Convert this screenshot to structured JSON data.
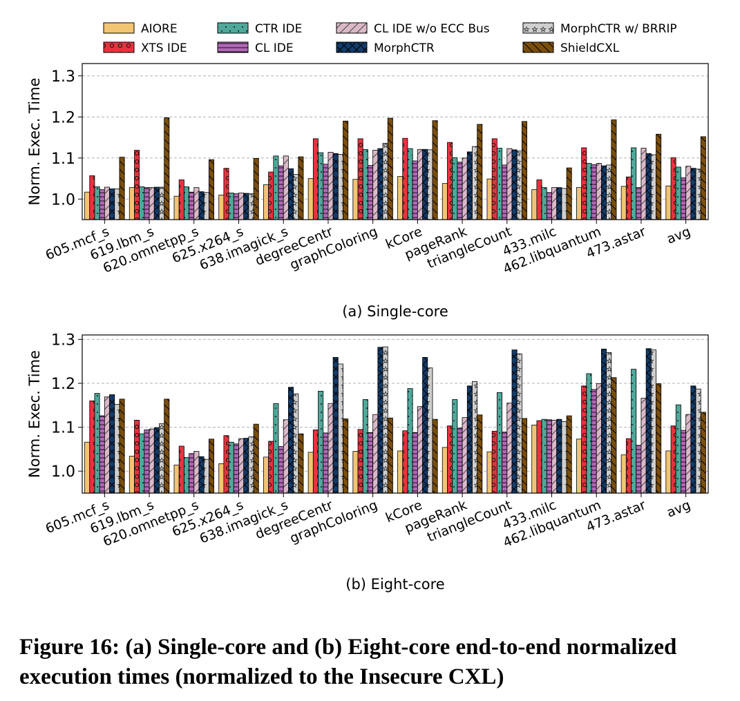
{
  "legend": [
    {
      "name": "AIORE",
      "color": "#f2c574",
      "pattern": "none"
    },
    {
      "name": "XTS IDE",
      "color": "#e8333f",
      "pattern": "circles"
    },
    {
      "name": "CTR IDE",
      "color": "#4fa89a",
      "pattern": "dots"
    },
    {
      "name": "CL IDE",
      "color": "#b267b8",
      "pattern": "hlines"
    },
    {
      "name": "CL IDE w/o ECC Bus",
      "color": "#dbb8c8",
      "pattern": "diag"
    },
    {
      "name": "MorphCTR",
      "color": "#123c6b",
      "pattern": "cross"
    },
    {
      "name": "MorphCTR w/ BRRIP",
      "color": "#cfcfcf",
      "pattern": "stars"
    },
    {
      "name": "ShieldCXL",
      "color": "#7a4e0c",
      "pattern": "backdiag"
    }
  ],
  "chart_data": [
    {
      "type": "bar",
      "subtitle": "(a) Single-core",
      "ylabel": "Norm. Exec. Time",
      "ylim": [
        0.95,
        1.33
      ],
      "yticks": [
        "1.0",
        "1.1",
        "1.2",
        "1.3"
      ],
      "grid": "horizontal dashed",
      "categories": [
        "605.mcf_s",
        "619.lbm_s",
        "620.omnetpp_s",
        "625.x264_s",
        "638.imagick_s",
        "degreeCentr",
        "graphColoring",
        "kCore",
        "pageRank",
        "triangleCount",
        "433.milc",
        "462.libquantum",
        "473.astar",
        "avg"
      ],
      "series": [
        {
          "name": "AIORE",
          "values": [
            1.017,
            1.028,
            1.007,
            1.01,
            1.035,
            1.05,
            1.048,
            1.055,
            1.038,
            1.049,
            1.023,
            1.028,
            1.031,
            1.032
          ]
        },
        {
          "name": "XTS IDE",
          "values": [
            1.057,
            1.119,
            1.047,
            1.075,
            1.066,
            1.147,
            1.147,
            1.148,
            1.138,
            1.147,
            1.047,
            1.125,
            1.054,
            1.101
          ]
        },
        {
          "name": "CTR IDE",
          "values": [
            1.03,
            1.03,
            1.03,
            1.015,
            1.105,
            1.113,
            1.121,
            1.123,
            1.101,
            1.124,
            1.028,
            1.087,
            1.125,
            1.078
          ]
        },
        {
          "name": "CL IDE",
          "values": [
            1.023,
            1.028,
            1.017,
            1.013,
            1.081,
            1.085,
            1.082,
            1.093,
            1.09,
            1.083,
            1.016,
            1.084,
            1.028,
            1.052
          ]
        },
        {
          "name": "CL IDE w/o ECC Bus",
          "values": [
            1.029,
            1.028,
            1.028,
            1.015,
            1.105,
            1.114,
            1.119,
            1.121,
            1.1,
            1.123,
            1.028,
            1.087,
            1.124,
            1.08
          ]
        },
        {
          "name": "MorphCTR",
          "values": [
            1.025,
            1.029,
            1.018,
            1.014,
            1.074,
            1.111,
            1.123,
            1.121,
            1.115,
            1.12,
            1.028,
            1.081,
            1.111,
            1.075
          ]
        },
        {
          "name": "MorphCTR w/ BRRIP",
          "values": [
            1.025,
            1.029,
            1.016,
            1.013,
            1.06,
            1.109,
            1.136,
            1.12,
            1.128,
            1.117,
            1.026,
            1.083,
            1.108,
            1.073
          ]
        },
        {
          "name": "ShieldCXL",
          "values": [
            1.102,
            1.198,
            1.096,
            1.099,
            1.103,
            1.19,
            1.197,
            1.191,
            1.182,
            1.189,
            1.076,
            1.193,
            1.158,
            1.152
          ]
        }
      ]
    },
    {
      "type": "bar",
      "subtitle": "(b) Eight-core",
      "ylabel": "Norm. Exec. Time",
      "ylim": [
        0.95,
        1.31
      ],
      "yticks": [
        "1.0",
        "1.1",
        "1.2",
        "1.3"
      ],
      "grid": "horizontal dashed",
      "categories": [
        "605.mcf_s",
        "619.lbm_s",
        "620.omnetpp_s",
        "625.x264_s",
        "638.imagick_s",
        "degreeCentr",
        "graphColoring",
        "kCore",
        "pageRank",
        "triangleCount",
        "433.milc",
        "462.libquantum",
        "473.astar",
        "avg"
      ],
      "series": [
        {
          "name": "AIORE",
          "values": [
            1.066,
            1.034,
            1.014,
            1.017,
            1.032,
            1.043,
            1.045,
            1.046,
            1.054,
            1.044,
            1.105,
            1.073,
            1.037,
            1.046
          ]
        },
        {
          "name": "XTS IDE",
          "values": [
            1.16,
            1.116,
            1.057,
            1.081,
            1.068,
            1.094,
            1.095,
            1.092,
            1.103,
            1.091,
            1.115,
            1.194,
            1.074,
            1.103
          ]
        },
        {
          "name": "CTR IDE",
          "values": [
            1.177,
            1.085,
            1.031,
            1.066,
            1.154,
            1.182,
            1.163,
            1.188,
            1.163,
            1.179,
            1.118,
            1.222,
            1.232,
            1.151
          ]
        },
        {
          "name": "CL IDE",
          "values": [
            1.126,
            1.094,
            1.04,
            1.062,
            1.056,
            1.087,
            1.088,
            1.088,
            1.098,
            1.089,
            1.117,
            1.186,
            1.059,
            1.093
          ]
        },
        {
          "name": "CL IDE w/o ECC Bus",
          "values": [
            1.169,
            1.096,
            1.045,
            1.074,
            1.117,
            1.154,
            1.129,
            1.147,
            1.122,
            1.155,
            1.116,
            1.199,
            1.166,
            1.129
          ]
        },
        {
          "name": "MorphCTR",
          "values": [
            1.174,
            1.099,
            1.033,
            1.075,
            1.191,
            1.259,
            1.282,
            1.259,
            1.194,
            1.276,
            1.118,
            1.278,
            1.279,
            1.194
          ]
        },
        {
          "name": "MorphCTR w/ BRRIP",
          "values": [
            1.152,
            1.108,
            1.027,
            1.078,
            1.176,
            1.244,
            1.283,
            1.235,
            1.204,
            1.267,
            1.113,
            1.27,
            1.276,
            1.187
          ]
        },
        {
          "name": "ShieldCXL",
          "values": [
            1.164,
            1.164,
            1.073,
            1.107,
            1.085,
            1.119,
            1.121,
            1.118,
            1.128,
            1.12,
            1.126,
            1.213,
            1.199,
            1.134
          ]
        }
      ]
    }
  ],
  "caption": "Figure 16: (a) Single-core and (b) Eight-core end-to-end normalized execution times (normalized to the Insecure CXL)"
}
